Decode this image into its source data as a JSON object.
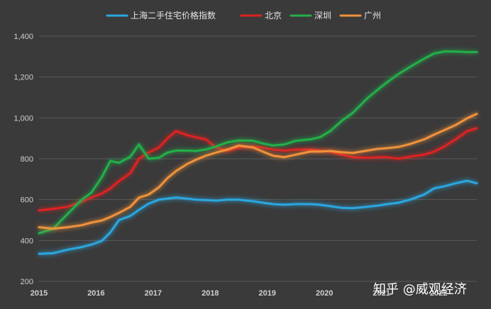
{
  "chart_data": {
    "type": "line",
    "title": "",
    "xlabel": "",
    "ylabel": "",
    "x_ticks": [
      "2015",
      "2016",
      "2017",
      "2018",
      "2019",
      "2020",
      "2021",
      "2022"
    ],
    "y_ticks": [
      "200",
      "400",
      "600",
      "800",
      "1,000",
      "1,200",
      "1,400"
    ],
    "ylim": [
      200,
      1400
    ],
    "xlim": [
      2015.0,
      2022.67
    ],
    "grid": true,
    "legend_position": "top-center",
    "series": [
      {
        "name": "上海二手住宅价格指数",
        "color": "#2aa7e0",
        "x": [
          2015.0,
          2015.25,
          2015.5,
          2015.75,
          2015.92,
          2016.1,
          2016.25,
          2016.4,
          2016.6,
          2016.75,
          2016.92,
          2017.1,
          2017.25,
          2017.4,
          2017.6,
          2017.75,
          2017.92,
          2018.1,
          2018.3,
          2018.5,
          2018.75,
          2018.92,
          2019.1,
          2019.3,
          2019.5,
          2019.75,
          2019.92,
          2020.1,
          2020.3,
          2020.5,
          2020.75,
          2020.92,
          2021.1,
          2021.3,
          2021.5,
          2021.75,
          2021.92,
          2022.1,
          2022.3,
          2022.5,
          2022.67
        ],
        "values": [
          335,
          338,
          355,
          368,
          380,
          398,
          440,
          500,
          520,
          550,
          580,
          600,
          605,
          610,
          605,
          600,
          598,
          595,
          600,
          600,
          592,
          585,
          578,
          575,
          578,
          578,
          575,
          568,
          560,
          558,
          565,
          570,
          578,
          585,
          600,
          625,
          655,
          665,
          680,
          692,
          680
        ]
      },
      {
        "name": "北京",
        "color": "#e02020",
        "x": [
          2015.0,
          2015.25,
          2015.5,
          2015.75,
          2015.92,
          2016.1,
          2016.25,
          2016.4,
          2016.6,
          2016.75,
          2016.92,
          2017.1,
          2017.25,
          2017.4,
          2017.6,
          2017.75,
          2017.92,
          2018.1,
          2018.3,
          2018.5,
          2018.75,
          2018.92,
          2019.1,
          2019.3,
          2019.5,
          2019.75,
          2019.92,
          2020.1,
          2020.3,
          2020.5,
          2020.75,
          2020.92,
          2021.1,
          2021.3,
          2021.5,
          2021.75,
          2021.92,
          2022.1,
          2022.3,
          2022.5,
          2022.67
        ],
        "values": [
          548,
          555,
          565,
          590,
          610,
          630,
          655,
          690,
          730,
          800,
          830,
          855,
          900,
          935,
          915,
          905,
          895,
          855,
          840,
          855,
          860,
          855,
          845,
          840,
          845,
          845,
          840,
          835,
          820,
          808,
          805,
          808,
          808,
          800,
          810,
          820,
          835,
          860,
          895,
          935,
          950
        ]
      },
      {
        "name": "深圳",
        "color": "#22b04a",
        "x": [
          2015.0,
          2015.25,
          2015.5,
          2015.75,
          2015.92,
          2016.1,
          2016.25,
          2016.4,
          2016.6,
          2016.75,
          2016.92,
          2017.1,
          2017.25,
          2017.4,
          2017.6,
          2017.75,
          2017.92,
          2018.1,
          2018.3,
          2018.5,
          2018.75,
          2018.92,
          2019.1,
          2019.3,
          2019.5,
          2019.75,
          2019.92,
          2020.1,
          2020.3,
          2020.5,
          2020.75,
          2020.92,
          2021.1,
          2021.3,
          2021.5,
          2021.75,
          2021.92,
          2022.1,
          2022.3,
          2022.5,
          2022.67
        ],
        "values": [
          435,
          458,
          530,
          600,
          635,
          710,
          790,
          780,
          810,
          870,
          800,
          805,
          830,
          840,
          840,
          838,
          845,
          860,
          880,
          890,
          888,
          875,
          865,
          870,
          888,
          895,
          905,
          935,
          985,
          1025,
          1095,
          1135,
          1175,
          1215,
          1250,
          1290,
          1315,
          1325,
          1325,
          1322,
          1322
        ]
      },
      {
        "name": "广州",
        "color": "#f0923a",
        "x": [
          2015.0,
          2015.25,
          2015.5,
          2015.75,
          2015.92,
          2016.1,
          2016.25,
          2016.4,
          2016.6,
          2016.75,
          2016.92,
          2017.1,
          2017.25,
          2017.4,
          2017.6,
          2017.75,
          2017.92,
          2018.1,
          2018.3,
          2018.5,
          2018.75,
          2018.92,
          2019.1,
          2019.3,
          2019.5,
          2019.75,
          2019.92,
          2020.1,
          2020.3,
          2020.5,
          2020.75,
          2020.92,
          2021.1,
          2021.3,
          2021.5,
          2021.75,
          2021.92,
          2022.1,
          2022.3,
          2022.5,
          2022.67
        ],
        "values": [
          465,
          458,
          465,
          475,
          488,
          498,
          515,
          535,
          565,
          610,
          625,
          660,
          705,
          740,
          775,
          795,
          815,
          830,
          845,
          865,
          855,
          835,
          815,
          808,
          820,
          835,
          835,
          838,
          832,
          828,
          840,
          848,
          852,
          858,
          872,
          895,
          918,
          940,
          965,
          998,
          1020
        ]
      }
    ]
  },
  "watermark": "知乎 @威观经济"
}
